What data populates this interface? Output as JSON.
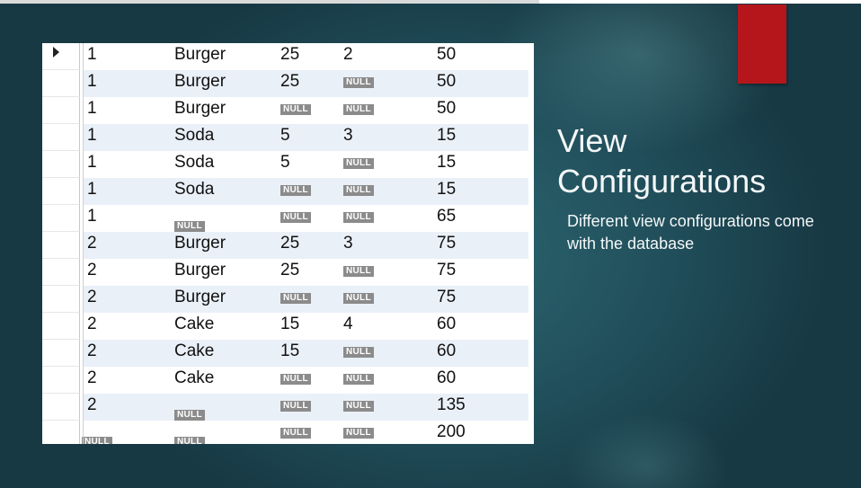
{
  "slide": {
    "title_line1": "View",
    "title_line2": "Configurations",
    "description": "Different view configurations come with the database",
    "accent_color": "#b4161b"
  },
  "grid": {
    "null_label": "NULL",
    "selected_row_marker": "arrow-right-icon",
    "rows": [
      [
        "1",
        "Burger",
        "25",
        "2",
        "50"
      ],
      [
        "1",
        "Burger",
        "25",
        null,
        "50"
      ],
      [
        "1",
        "Burger",
        null,
        null,
        "50"
      ],
      [
        "1",
        "Soda",
        "5",
        "3",
        "15"
      ],
      [
        "1",
        "Soda",
        "5",
        null,
        "15"
      ],
      [
        "1",
        "Soda",
        null,
        null,
        "15"
      ],
      [
        "1",
        null,
        null,
        null,
        "65"
      ],
      [
        "2",
        "Burger",
        "25",
        "3",
        "75"
      ],
      [
        "2",
        "Burger",
        "25",
        null,
        "75"
      ],
      [
        "2",
        "Burger",
        null,
        null,
        "75"
      ],
      [
        "2",
        "Cake",
        "15",
        "4",
        "60"
      ],
      [
        "2",
        "Cake",
        "15",
        null,
        "60"
      ],
      [
        "2",
        "Cake",
        null,
        null,
        "60"
      ],
      [
        "2",
        null,
        null,
        null,
        "135"
      ],
      [
        null,
        null,
        null,
        null,
        "200"
      ]
    ]
  }
}
